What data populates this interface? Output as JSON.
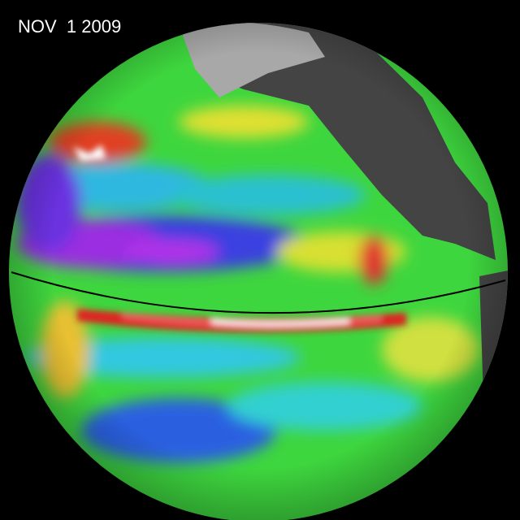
{
  "date_label": "NOV  1 2009"
}
